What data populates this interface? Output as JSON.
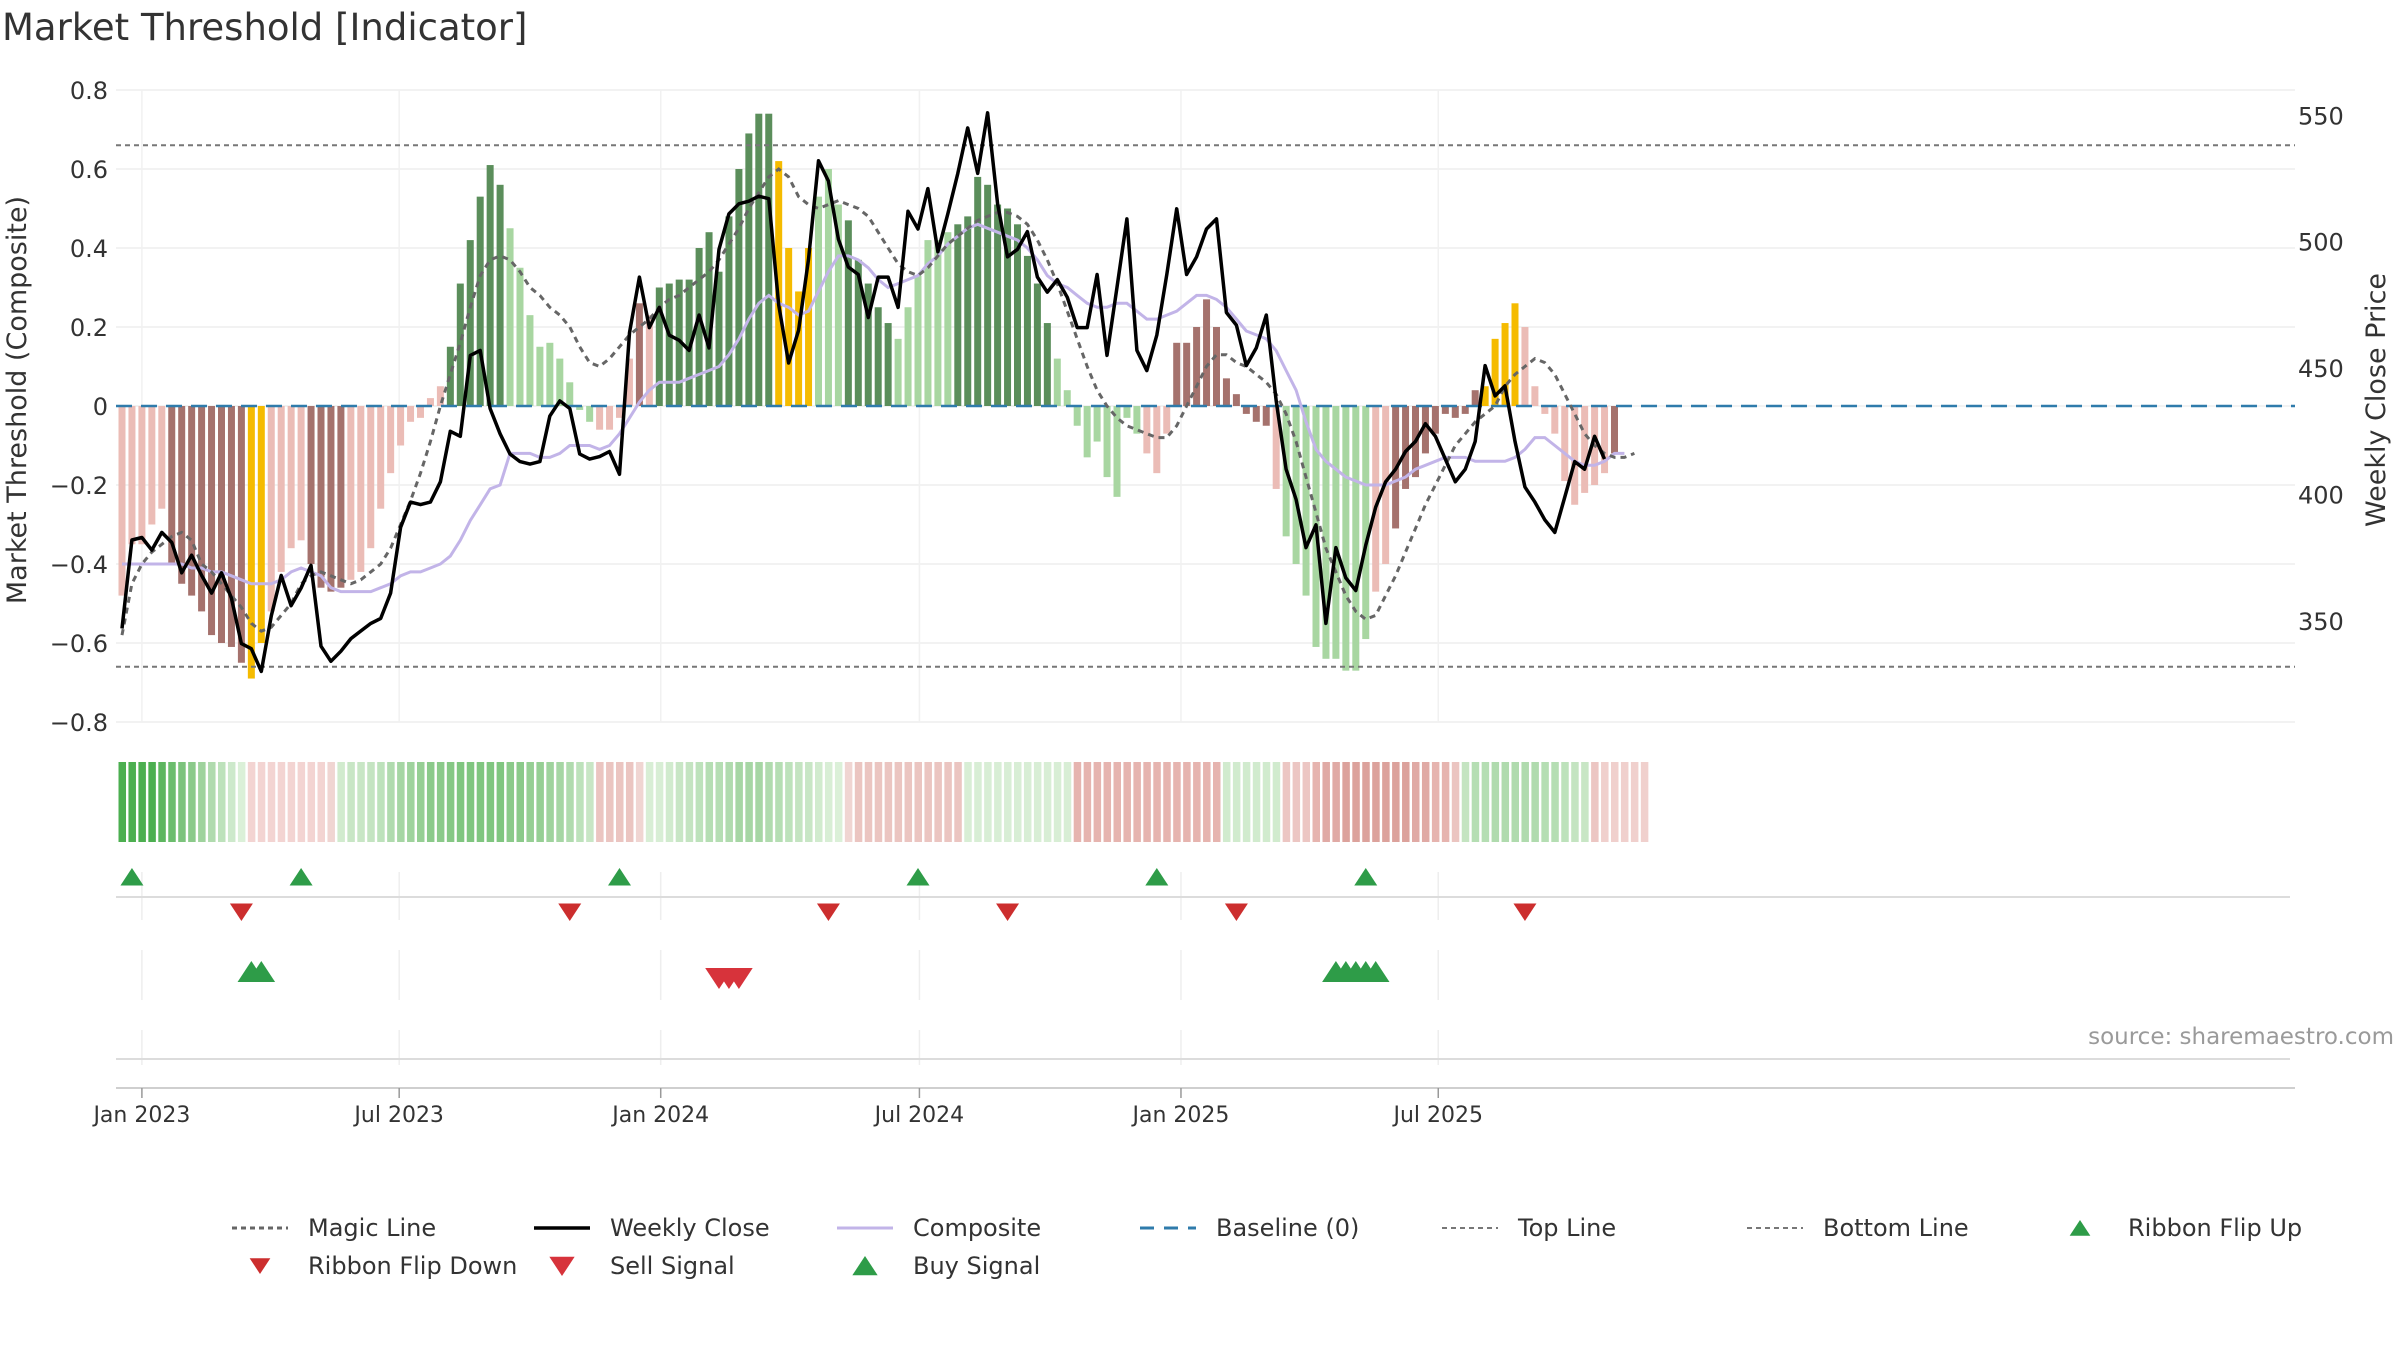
{
  "title": "Market Threshold [Indicator]",
  "source": "source: sharemaestro.com",
  "chart_data": {
    "type": "bar",
    "xlabel": "",
    "ylabel_left": "Market Threshold (Composite)",
    "ylabel_right": "Weekly Close Price",
    "ylim_left": [
      -0.8,
      0.8
    ],
    "ylim_right": [
      310,
      560
    ],
    "left_ticks": [
      0.8,
      0.6,
      0.4,
      0.2,
      0,
      -0.2,
      -0.4,
      -0.6,
      -0.8
    ],
    "left_tick_labels": [
      "0.8",
      "0.6",
      "0.4",
      "0.2",
      "0",
      "−0.2",
      "−0.4",
      "−0.6",
      "−0.8"
    ],
    "right_ticks": [
      550,
      500,
      450,
      400,
      350
    ],
    "x_start": "2022-12-18",
    "x_ticks": [
      {
        "date": "2023-01-01",
        "label": "Jan 2023"
      },
      {
        "date": "2023-07-01",
        "label": "Jul 2023"
      },
      {
        "date": "2024-01-01",
        "label": "Jan 2024"
      },
      {
        "date": "2024-07-01",
        "label": "Jul 2024"
      },
      {
        "date": "2025-01-01",
        "label": "Jan 2025"
      },
      {
        "date": "2025-07-01",
        "label": "Jul 2025"
      }
    ],
    "top_line": 0.66,
    "bottom_line": -0.66,
    "bars": [
      -0.48,
      -0.35,
      -0.35,
      -0.3,
      -0.26,
      -0.4,
      -0.45,
      -0.48,
      -0.52,
      -0.58,
      -0.6,
      -0.61,
      -0.65,
      -0.69,
      -0.6,
      -0.52,
      -0.42,
      -0.36,
      -0.34,
      -0.4,
      -0.46,
      -0.47,
      -0.46,
      -0.44,
      -0.42,
      -0.36,
      -0.26,
      -0.17,
      -0.1,
      -0.04,
      -0.03,
      0.02,
      0.05,
      0.15,
      0.31,
      0.42,
      0.53,
      0.61,
      0.56,
      0.45,
      0.35,
      0.23,
      0.15,
      0.16,
      0.12,
      0.06,
      -0.01,
      -0.04,
      -0.06,
      -0.06,
      -0.03,
      0.12,
      0.26,
      0.23,
      0.3,
      0.31,
      0.32,
      0.32,
      0.4,
      0.44,
      0.34,
      0.48,
      0.6,
      0.69,
      0.74,
      0.74,
      0.62,
      0.4,
      0.29,
      0.4,
      0.53,
      0.6,
      0.51,
      0.47,
      0.37,
      0.31,
      0.25,
      0.21,
      0.17,
      0.25,
      0.33,
      0.42,
      0.42,
      0.44,
      0.46,
      0.48,
      0.58,
      0.56,
      0.51,
      0.5,
      0.46,
      0.38,
      0.31,
      0.21,
      0.12,
      0.04,
      -0.05,
      -0.13,
      -0.09,
      -0.18,
      -0.23,
      -0.03,
      -0.07,
      -0.12,
      -0.17,
      -0.07,
      0.16,
      0.16,
      0.2,
      0.27,
      0.2,
      0.07,
      0.03,
      -0.02,
      -0.04,
      -0.05,
      -0.21,
      -0.33,
      -0.4,
      -0.48,
      -0.61,
      -0.64,
      -0.64,
      -0.67,
      -0.67,
      -0.59,
      -0.47,
      -0.4,
      -0.31,
      -0.21,
      -0.18,
      -0.12,
      -0.07,
      -0.02,
      -0.03,
      -0.02,
      0.04,
      0.05,
      0.17,
      0.21,
      0.26,
      0.2,
      0.05,
      -0.02,
      -0.07,
      -0.19,
      -0.25,
      -0.22,
      -0.2,
      -0.17,
      -0.12
    ],
    "bar_color_codes": "LLLLLDDDDDDDDYYLLLLDDDDLLLLLLLLLLGGGGGGPPPPPPPPPLLLLDLGGGGGGGGGGGGYYYYPPPGGGGGPPPPPPGGGGGGGGGGPPPPPPPPPLLLDDDDDDDDDDLPPPPPPPPPLLDDDDDDDDDYYYYLLLLLLLLLDPPGGGGPPLLLLLLDLL",
    "bar_palette": {
      "L": "#ebbcb6",
      "D": "#a5726d",
      "Y": "#f5bb00",
      "G": "#5b8e5b",
      "P": "#a8d6a1"
    },
    "weekly_close": [
      347,
      382,
      383,
      378,
      385,
      381,
      369,
      376,
      368,
      361,
      369,
      359,
      341,
      339,
      330,
      352,
      368,
      356,
      363,
      372,
      340,
      334,
      338,
      343,
      346,
      349,
      351,
      361,
      387,
      397,
      396,
      397,
      405,
      425,
      423,
      455,
      457,
      434,
      424,
      416,
      413,
      412,
      413,
      431,
      437,
      434,
      416,
      414,
      415,
      417,
      408,
      464,
      486,
      466,
      474,
      463,
      461,
      457,
      471,
      458,
      497,
      511,
      515,
      516,
      518,
      517,
      475,
      452,
      465,
      493,
      532,
      524,
      501,
      490,
      487,
      470,
      486,
      486,
      474,
      512,
      505,
      521,
      496,
      511,
      527,
      545,
      527,
      551,
      515,
      494,
      497,
      504,
      486,
      480,
      485,
      478,
      466,
      466,
      487,
      455,
      482,
      509,
      457,
      449,
      463,
      487,
      513,
      487,
      494,
      505,
      509,
      472,
      467,
      451,
      458,
      471,
      437,
      410,
      398,
      379,
      388,
      349,
      379,
      367,
      362,
      380,
      395,
      405,
      410,
      417,
      421,
      428,
      423,
      414,
      405,
      410,
      421,
      451,
      439,
      443,
      421,
      403,
      397,
      390,
      385,
      399,
      413,
      410,
      423,
      414
    ],
    "magic_line": [
      -0.58,
      -0.45,
      -0.4,
      -0.37,
      -0.35,
      -0.33,
      -0.32,
      -0.34,
      -0.4,
      -0.42,
      -0.45,
      -0.48,
      -0.51,
      -0.55,
      -0.57,
      -0.56,
      -0.53,
      -0.5,
      -0.45,
      -0.43,
      -0.42,
      -0.43,
      -0.44,
      -0.45,
      -0.44,
      -0.42,
      -0.4,
      -0.36,
      -0.3,
      -0.24,
      -0.17,
      -0.09,
      0.0,
      0.08,
      0.16,
      0.25,
      0.33,
      0.37,
      0.38,
      0.37,
      0.34,
      0.3,
      0.28,
      0.25,
      0.23,
      0.2,
      0.15,
      0.11,
      0.1,
      0.12,
      0.15,
      0.18,
      0.2,
      0.22,
      0.25,
      0.27,
      0.28,
      0.3,
      0.32,
      0.34,
      0.37,
      0.41,
      0.45,
      0.5,
      0.54,
      0.58,
      0.6,
      0.58,
      0.53,
      0.51,
      0.5,
      0.51,
      0.52,
      0.51,
      0.5,
      0.48,
      0.44,
      0.4,
      0.36,
      0.34,
      0.33,
      0.35,
      0.38,
      0.41,
      0.43,
      0.45,
      0.47,
      0.48,
      0.49,
      0.49,
      0.48,
      0.46,
      0.42,
      0.37,
      0.31,
      0.24,
      0.17,
      0.1,
      0.04,
      0.0,
      -0.03,
      -0.05,
      -0.06,
      -0.07,
      -0.08,
      -0.08,
      -0.05,
      0.0,
      0.05,
      0.1,
      0.13,
      0.13,
      0.11,
      0.1,
      0.08,
      0.06,
      0.03,
      -0.02,
      -0.09,
      -0.18,
      -0.27,
      -0.36,
      -0.42,
      -0.48,
      -0.52,
      -0.54,
      -0.53,
      -0.48,
      -0.43,
      -0.37,
      -0.31,
      -0.25,
      -0.2,
      -0.15,
      -0.1,
      -0.07,
      -0.04,
      -0.02,
      0.0,
      0.05,
      0.08,
      0.1,
      0.12,
      0.11,
      0.08,
      0.03,
      -0.02,
      -0.07,
      -0.1,
      -0.12,
      -0.13,
      -0.13,
      -0.12
    ],
    "composite": [
      -0.4,
      -0.4,
      -0.4,
      -0.4,
      -0.4,
      -0.4,
      -0.4,
      -0.41,
      -0.41,
      -0.42,
      -0.42,
      -0.43,
      -0.44,
      -0.45,
      -0.45,
      -0.45,
      -0.44,
      -0.42,
      -0.41,
      -0.42,
      -0.43,
      -0.46,
      -0.47,
      -0.47,
      -0.47,
      -0.47,
      -0.46,
      -0.45,
      -0.43,
      -0.42,
      -0.42,
      -0.41,
      -0.4,
      -0.38,
      -0.34,
      -0.29,
      -0.25,
      -0.21,
      -0.2,
      -0.12,
      -0.12,
      -0.12,
      -0.13,
      -0.13,
      -0.12,
      -0.1,
      -0.1,
      -0.1,
      -0.11,
      -0.1,
      -0.07,
      -0.03,
      0.01,
      0.04,
      0.06,
      0.06,
      0.06,
      0.07,
      0.08,
      0.09,
      0.1,
      0.13,
      0.17,
      0.22,
      0.26,
      0.28,
      0.26,
      0.25,
      0.23,
      0.24,
      0.29,
      0.34,
      0.38,
      0.38,
      0.37,
      0.35,
      0.32,
      0.3,
      0.31,
      0.32,
      0.33,
      0.36,
      0.38,
      0.41,
      0.43,
      0.45,
      0.46,
      0.45,
      0.44,
      0.43,
      0.42,
      0.4,
      0.37,
      0.33,
      0.31,
      0.3,
      0.28,
      0.26,
      0.25,
      0.25,
      0.26,
      0.26,
      0.24,
      0.22,
      0.22,
      0.23,
      0.24,
      0.26,
      0.28,
      0.28,
      0.27,
      0.25,
      0.22,
      0.19,
      0.18,
      0.17,
      0.14,
      0.09,
      0.04,
      -0.04,
      -0.11,
      -0.14,
      -0.16,
      -0.18,
      -0.19,
      -0.2,
      -0.2,
      -0.2,
      -0.19,
      -0.18,
      -0.16,
      -0.15,
      -0.14,
      -0.13,
      -0.13,
      -0.13,
      -0.14,
      -0.14,
      -0.14,
      -0.14,
      -0.13,
      -0.11,
      -0.08,
      -0.08,
      -0.1,
      -0.12,
      -0.14,
      -0.15,
      -0.15,
      -0.14,
      -0.12,
      -0.12
    ],
    "ribbon_colors": [
      "#4caf50",
      "#4caf50",
      "#4caf50",
      "#4caf50",
      "#5db65f",
      "#6bbd6d",
      "#7cc37c",
      "#8bca8a",
      "#9fd39d",
      "#b0dbae",
      "#bde2bb",
      "#cde9cb",
      "#dbf0d8",
      "#f3d4d2",
      "#f3d4d2",
      "#f3d4d2",
      "#f3d4d2",
      "#f3d4d2",
      "#f3d4d2",
      "#f3d4d2",
      "#f3d4d2",
      "#f0d5d2",
      "#d1ebce",
      "#c8e6c5",
      "#c8e6c5",
      "#c4e4c1",
      "#bde2bb",
      "#b0dbae",
      "#a6d6a4",
      "#9fd39d",
      "#96cf94",
      "#8bca8a",
      "#8bca8a",
      "#86c885",
      "#80c680",
      "#80c680",
      "#80c680",
      "#80c680",
      "#80c680",
      "#8bca8a",
      "#8bca8a",
      "#96cf94",
      "#96cf94",
      "#9fd39d",
      "#a6d6a4",
      "#b0dbae",
      "#bde2bb",
      "#c8e6c5",
      "#ebc5c1",
      "#ebc5c1",
      "#ebc5c1",
      "#ebc5c1",
      "#f0d5d2",
      "#d8eed5",
      "#d8eed5",
      "#d1ebce",
      "#c8e6c5",
      "#c4e4c1",
      "#bde2bb",
      "#b5deb3",
      "#b5deb3",
      "#b0dbae",
      "#a6d6a4",
      "#a6d6a4",
      "#a6d6a4",
      "#b0dbae",
      "#b5deb3",
      "#bde2bb",
      "#c4e4c1",
      "#c8e6c5",
      "#d1ebce",
      "#d8eed5",
      "#dbf0d8",
      "#f0d5d2",
      "#ebc5c1",
      "#ebc5c1",
      "#ebc5c1",
      "#ebc5c1",
      "#ebc5c1",
      "#ebc5c1",
      "#ebc5c1",
      "#ebc5c1",
      "#ebc5c1",
      "#ebc5c1",
      "#ebc5c1",
      "#d8eed5",
      "#d8eed5",
      "#d8eed5",
      "#d8eed5",
      "#d8eed5",
      "#d8eed5",
      "#d8eed5",
      "#d8eed5",
      "#d8eed5",
      "#d8eed5",
      "#d8eed5",
      "#e6b4af",
      "#e6b4af",
      "#e6b4af",
      "#e6b4af",
      "#e6b4af",
      "#e6b4af",
      "#e6b4af",
      "#e6b4af",
      "#e6b4af",
      "#e6b4af",
      "#e6b4af",
      "#e6b4af",
      "#e6b4af",
      "#e6b4af",
      "#e6b4af",
      "#d1ebce",
      "#d1ebce",
      "#d1ebce",
      "#d1ebce",
      "#d1ebce",
      "#d1ebce",
      "#ecc6c3",
      "#ecc6c3",
      "#ecc6c3",
      "#e6b4af",
      "#e0aaa5",
      "#e0aaa5",
      "#dca29c",
      "#dca29c",
      "#dca29c",
      "#dca29c",
      "#dca29c",
      "#dca29c",
      "#dca29c",
      "#e0aaa5",
      "#e0aaa5",
      "#e6b4af",
      "#e6b4af",
      "#ebc5c1",
      "#c4e4c1",
      "#b5deb3",
      "#b5deb3",
      "#b0dbae",
      "#b0dbae",
      "#b0dbae",
      "#b0dbae",
      "#b0dbae",
      "#b5deb3",
      "#b5deb3",
      "#bde2bb",
      "#c4e4c1",
      "#c8e6c5",
      "#ecc6c3",
      "#f0d0cd",
      "#f0d0cd",
      "#f0d0cd",
      "#f0d0cd",
      "#f0d0cd"
    ],
    "ribbon_flip_up": [
      1,
      18,
      50,
      80,
      104,
      125
    ],
    "ribbon_flip_down": [
      12,
      45,
      71,
      89,
      112,
      141
    ],
    "buy_signals": [
      13,
      14,
      122,
      123,
      124,
      125,
      126
    ],
    "sell_signals": [
      60,
      61,
      62
    ],
    "legend": [
      {
        "label": "Magic Line",
        "key": "magic"
      },
      {
        "label": "Weekly Close",
        "key": "close"
      },
      {
        "label": "Composite",
        "key": "composite"
      },
      {
        "label": "Baseline (0)",
        "key": "baseline"
      },
      {
        "label": "Top Line",
        "key": "top"
      },
      {
        "label": "Bottom Line",
        "key": "bottom"
      },
      {
        "label": "Ribbon Flip Up",
        "key": "flipup"
      },
      {
        "label": "Ribbon Flip Down",
        "key": "flipdown"
      },
      {
        "label": "Sell Signal",
        "key": "sell"
      },
      {
        "label": "Buy Signal",
        "key": "buy"
      }
    ],
    "colors": {
      "weekly_close": "#000000",
      "magic_line": "#666666",
      "composite": "#c2b4e8",
      "baseline": "#2f7bab",
      "threshold_lines": "#777777",
      "buy_up": "#2e9c48",
      "sell_down": "#d7333b",
      "ribbon_flip_down": "#cc2e2e"
    },
    "grid": true,
    "legend_position": "bottom"
  }
}
